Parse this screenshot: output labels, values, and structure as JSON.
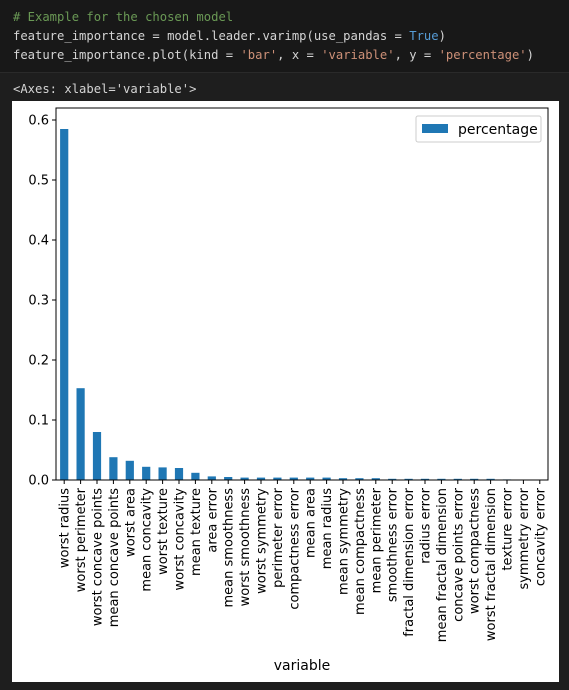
{
  "code": {
    "comment": "# Example for the chosen model",
    "line2_pre": "feature_importance = model.leader.varimp(use_pandas = ",
    "line2_kw": "True",
    "line2_close": ")",
    "line3_pre": "feature_importance.plot(kind = ",
    "line3_s1": "'bar'",
    "line3_mid1": ", x = ",
    "line3_s2": "'variable'",
    "line3_mid2": ", y = ",
    "line3_s3": "'percentage'",
    "line3_close": ")"
  },
  "output": {
    "repr": "<Axes: xlabel='variable'>"
  },
  "colors": {
    "bar": "#1f77b4",
    "background": "#1e1e1e",
    "code_bg": "#181818"
  },
  "chart_data": {
    "type": "bar",
    "title": "",
    "xlabel": "variable",
    "ylabel": "",
    "ylim": [
      0,
      0.62
    ],
    "yticks": [
      0.0,
      0.1,
      0.2,
      0.3,
      0.4,
      0.5,
      0.6
    ],
    "ytick_labels": [
      "0.0",
      "0.1",
      "0.2",
      "0.3",
      "0.4",
      "0.5",
      "0.6"
    ],
    "legend": {
      "placement": "top-right",
      "entries": [
        "percentage"
      ]
    },
    "categories": [
      "worst radius",
      "worst perimeter",
      "worst concave points",
      "mean concave points",
      "worst area",
      "mean concavity",
      "worst texture",
      "worst concavity",
      "mean texture",
      "area error",
      "mean smoothness",
      "worst smoothness",
      "worst symmetry",
      "perimeter error",
      "compactness error",
      "mean area",
      "mean radius",
      "mean symmetry",
      "mean compactness",
      "mean perimeter",
      "smoothness error",
      "fractal dimension error",
      "radius error",
      "mean fractal dimension",
      "concave points error",
      "worst compactness",
      "worst fractal dimension",
      "texture error",
      "symmetry error",
      "concavity error"
    ],
    "series": [
      {
        "name": "percentage",
        "values": [
          0.585,
          0.153,
          0.08,
          0.038,
          0.032,
          0.022,
          0.021,
          0.02,
          0.012,
          0.006,
          0.005,
          0.004,
          0.004,
          0.004,
          0.004,
          0.004,
          0.004,
          0.003,
          0.003,
          0.003,
          0.002,
          0.002,
          0.002,
          0.002,
          0.002,
          0.002,
          0.002,
          0.001,
          0.0005,
          0.0003
        ]
      }
    ]
  }
}
